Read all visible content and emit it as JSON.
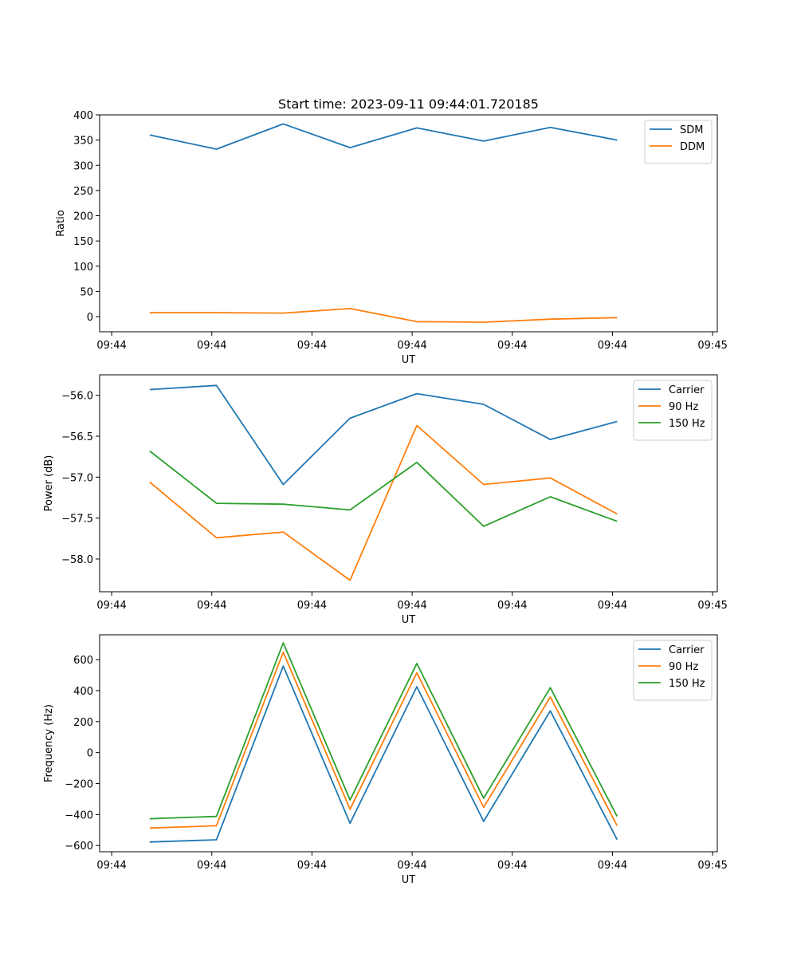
{
  "chart_data": [
    {
      "type": "line",
      "title": "Start time: 2023-09-11 09:44:01.720185",
      "xlabel": "UT",
      "ylabel": "Ratio",
      "xlim": [
        0,
        9.25
      ],
      "ylim": [
        -30,
        400
      ],
      "x": [
        0.75,
        1.75,
        2.75,
        3.75,
        4.75,
        5.75,
        6.75,
        7.75
      ],
      "x_tick_positions": [
        0.18,
        1.68,
        3.18,
        4.68,
        6.18,
        7.68,
        9.18
      ],
      "x_tick_labels": [
        "09:44",
        "09:44",
        "09:44",
        "09:44",
        "09:44",
        "09:44",
        "09:45"
      ],
      "y_ticks": [
        0,
        50,
        100,
        150,
        200,
        250,
        300,
        350,
        400
      ],
      "y_tick_labels": [
        "0",
        "50",
        "100",
        "150",
        "200",
        "250",
        "300",
        "350",
        "400"
      ],
      "legend_position": "top-right",
      "series": [
        {
          "name": "SDM",
          "color": "#1f77b4",
          "values": [
            360,
            332,
            382,
            335,
            374,
            348,
            375,
            350
          ]
        },
        {
          "name": "DDM",
          "color": "#ff7f0e",
          "values": [
            8,
            8,
            7,
            16,
            -10,
            -11,
            -5,
            -2
          ]
        }
      ]
    },
    {
      "type": "line",
      "title": "",
      "xlabel": "UT",
      "ylabel": "Power (dB)",
      "xlim": [
        0,
        9.25
      ],
      "ylim": [
        -58.4,
        -55.75
      ],
      "x": [
        0.75,
        1.75,
        2.75,
        3.75,
        4.75,
        5.75,
        6.75,
        7.75
      ],
      "x_tick_positions": [
        0.18,
        1.68,
        3.18,
        4.68,
        6.18,
        7.68,
        9.18
      ],
      "x_tick_labels": [
        "09:44",
        "09:44",
        "09:44",
        "09:44",
        "09:44",
        "09:44",
        "09:45"
      ],
      "y_ticks": [
        -56.0,
        -56.5,
        -57.0,
        -57.5,
        -58.0
      ],
      "y_tick_labels": [
        "−56.0",
        "−56.5",
        "−57.0",
        "−57.5",
        "−58.0"
      ],
      "legend_position": "top-right",
      "series": [
        {
          "name": "Carrier",
          "color": "#1f77b4",
          "values": [
            -55.93,
            -55.88,
            -57.09,
            -56.28,
            -55.98,
            -56.11,
            -56.54,
            -56.32
          ]
        },
        {
          "name": "90 Hz",
          "color": "#ff7f0e",
          "values": [
            -57.06,
            -57.74,
            -57.67,
            -58.26,
            -56.37,
            -57.09,
            -57.01,
            -57.45
          ]
        },
        {
          "name": "150 Hz",
          "color": "#2ca02c",
          "values": [
            -56.68,
            -57.32,
            -57.33,
            -57.4,
            -56.82,
            -57.6,
            -57.24,
            -57.54
          ]
        }
      ]
    },
    {
      "type": "line",
      "title": "",
      "xlabel": "UT",
      "ylabel": "Frequency (Hz)",
      "xlim": [
        0,
        9.25
      ],
      "ylim": [
        -640,
        760
      ],
      "x": [
        0.75,
        1.75,
        2.75,
        3.75,
        4.75,
        5.75,
        6.75,
        7.75
      ],
      "x_tick_positions": [
        0.18,
        1.68,
        3.18,
        4.68,
        6.18,
        7.68,
        9.18
      ],
      "x_tick_labels": [
        "09:44",
        "09:44",
        "09:44",
        "09:44",
        "09:44",
        "09:44",
        "09:45"
      ],
      "y_ticks": [
        -600,
        -400,
        -200,
        0,
        200,
        400,
        600
      ],
      "y_tick_labels": [
        "−600",
        "−400",
        "−200",
        "0",
        "200",
        "400",
        "600"
      ],
      "legend_position": "top-right",
      "series": [
        {
          "name": "Carrier",
          "color": "#1f77b4",
          "values": [
            -577,
            -563,
            558,
            -456,
            425,
            -444,
            269,
            -562
          ]
        },
        {
          "name": "90 Hz",
          "color": "#ff7f0e",
          "values": [
            -487,
            -472,
            648,
            -366,
            515,
            -354,
            359,
            -472
          ]
        },
        {
          "name": "150 Hz",
          "color": "#2ca02c",
          "values": [
            -427,
            -412,
            708,
            -306,
            575,
            -294,
            419,
            -412
          ]
        }
      ]
    }
  ]
}
